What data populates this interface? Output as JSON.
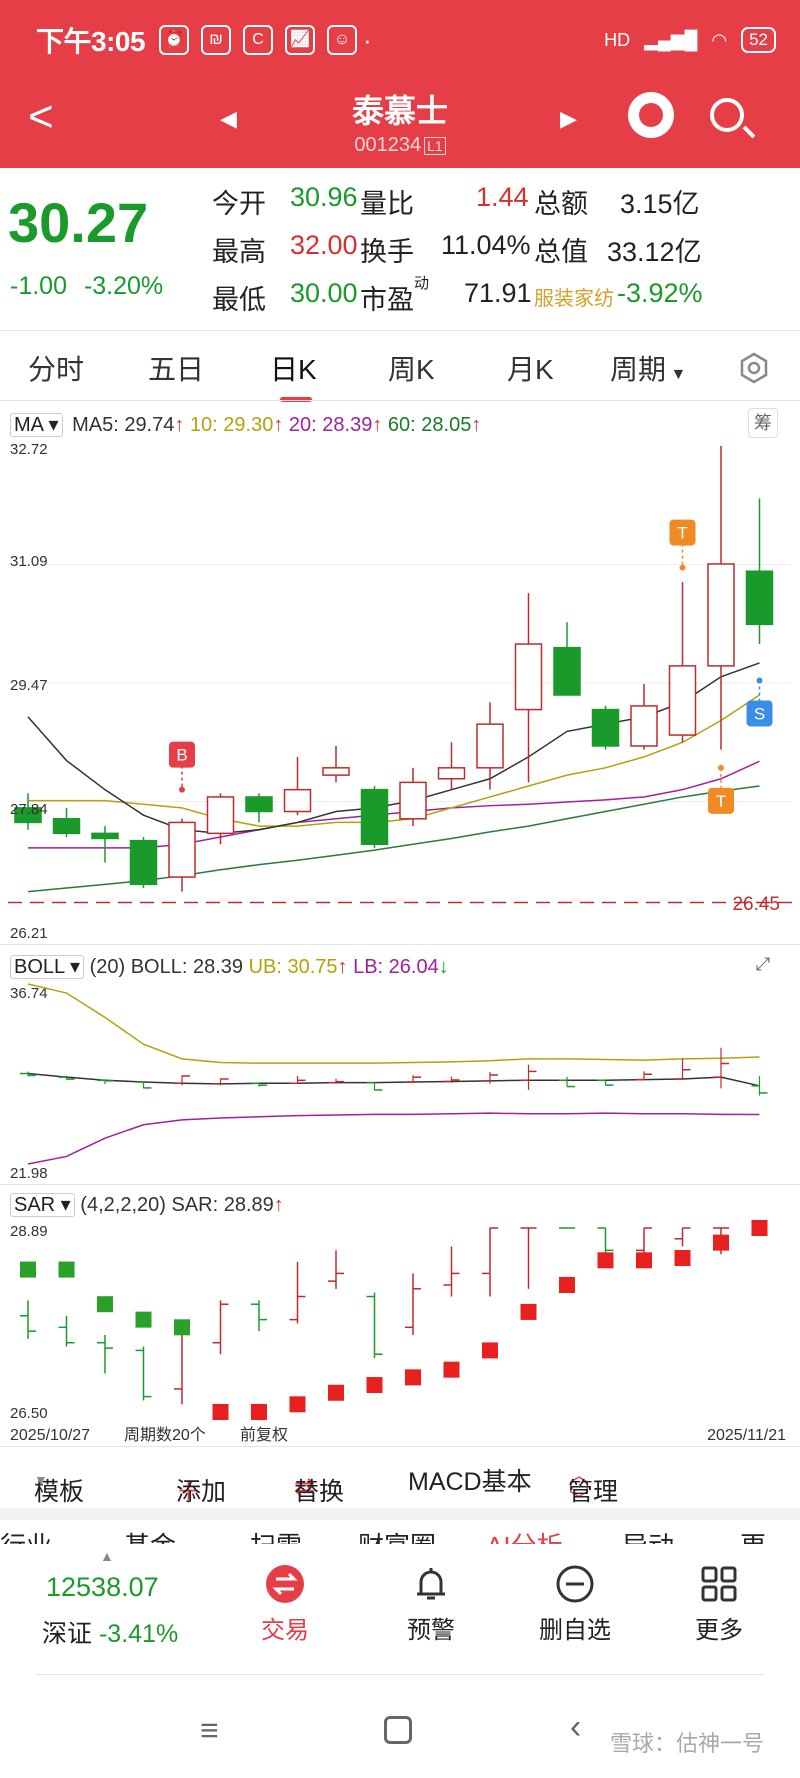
{
  "status_bar": {
    "time": "下午3:05",
    "battery": "52",
    "network": "HD"
  },
  "header": {
    "stock_name": "泰慕士",
    "stock_code": "001234",
    "code_badge": "L1"
  },
  "quote": {
    "price": "30.27",
    "change": "-1.00",
    "change_pct": "-3.20%",
    "open_label": "今开",
    "open": "30.96",
    "high_label": "最高",
    "high": "32.00",
    "low_label": "最低",
    "low": "30.00",
    "vol_ratio_label": "量比",
    "vol_ratio": "1.44",
    "turnover_label": "换手",
    "turnover": "11.04%",
    "pe_label": "市盈",
    "pe_sup": "动",
    "pe": "71.91",
    "amount_label": "总额",
    "amount": "3.15亿",
    "mcap_label": "总值",
    "mcap": "33.12亿",
    "industry": "服装家纺",
    "industry_pct": "-3.92%"
  },
  "tabs": [
    "分时",
    "五日",
    "日K",
    "周K",
    "月K",
    "周期"
  ],
  "active_tab": "日K",
  "ma_panel": {
    "selector": "MA",
    "ma5": "MA5: 29.74",
    "ma10": "10: 29.30",
    "ma20": "20: 28.39",
    "ma60": "60: 28.05",
    "tag": "筹",
    "y_labels": [
      "32.72",
      "31.09",
      "29.47",
      "27.84",
      "26.21"
    ],
    "low_marker": "26.45"
  },
  "boll_panel": {
    "selector": "BOLL",
    "params": "(20) BOLL: 28.39",
    "ub": "UB: 30.75",
    "lb": "LB: 26.04",
    "y_top": "36.74",
    "y_bottom": "21.98"
  },
  "sar_panel": {
    "selector": "SAR",
    "params": "(4,2,2,20) SAR: 28.89",
    "y_top": "28.89",
    "y_bottom": "26.50",
    "date_start": "2025/10/27",
    "period_count": "周期数20个",
    "adjust": "前复权",
    "date_end": "2025/11/21"
  },
  "toolbar": {
    "template": "模板",
    "add": "添加",
    "replace": "替换",
    "indicator": "MACD基本",
    "manage": "管理"
  },
  "sub_tabs_partial": [
    "行业",
    "基金",
    "扫雷",
    "财富圈",
    "AI分析",
    "异动",
    "更"
  ],
  "bottom_nav": {
    "index_value": "12538.07",
    "index_name": "深证",
    "index_change": "-3.41%",
    "trade": "交易",
    "alert": "预警",
    "remove_watch": "删自选",
    "more": "更多"
  },
  "watermark": "雪球：估神一号",
  "chart_data": {
    "type": "candlestick",
    "dates_range": [
      "2025/10/27",
      "2025/11/21"
    ],
    "y_range": [
      26.21,
      32.72
    ],
    "candles": [
      {
        "o": 27.75,
        "c": 27.55,
        "h": 27.95,
        "l": 27.45
      },
      {
        "o": 27.6,
        "c": 27.4,
        "h": 27.75,
        "l": 27.35
      },
      {
        "o": 27.4,
        "c": 27.33,
        "h": 27.5,
        "l": 27.0
      },
      {
        "o": 27.3,
        "c": 26.7,
        "h": 27.35,
        "l": 26.65
      },
      {
        "o": 26.8,
        "c": 27.55,
        "h": 27.6,
        "l": 26.6
      },
      {
        "o": 27.4,
        "c": 27.9,
        "h": 27.95,
        "l": 27.25
      },
      {
        "o": 27.9,
        "c": 27.7,
        "h": 27.95,
        "l": 27.55
      },
      {
        "o": 27.7,
        "c": 28.0,
        "h": 28.45,
        "l": 27.65
      },
      {
        "o": 28.2,
        "c": 28.3,
        "h": 28.6,
        "l": 28.1
      },
      {
        "o": 28.0,
        "c": 27.25,
        "h": 28.05,
        "l": 27.2
      },
      {
        "o": 27.6,
        "c": 28.1,
        "h": 28.3,
        "l": 27.5
      },
      {
        "o": 28.15,
        "c": 28.3,
        "h": 28.65,
        "l": 28.0
      },
      {
        "o": 28.3,
        "c": 28.9,
        "h": 29.2,
        "l": 28.0
      },
      {
        "o": 29.1,
        "c": 30.0,
        "h": 30.7,
        "l": 28.1
      },
      {
        "o": 29.95,
        "c": 29.3,
        "h": 30.3,
        "l": 29.3
      },
      {
        "o": 29.1,
        "c": 28.6,
        "h": 29.15,
        "l": 28.55
      },
      {
        "o": 28.6,
        "c": 29.15,
        "h": 29.45,
        "l": 28.55
      },
      {
        "o": 28.75,
        "c": 29.7,
        "h": 30.85,
        "l": 28.65
      },
      {
        "o": 29.7,
        "c": 31.1,
        "h": 32.72,
        "l": 28.55
      },
      {
        "o": 31.0,
        "c": 30.27,
        "h": 32.0,
        "l": 30.0
      }
    ],
    "signals": [
      {
        "index": 4,
        "label": "B",
        "pos": "above",
        "value": 28.0
      },
      {
        "index": 17,
        "label": "T",
        "pos": "above",
        "value": 31.05
      },
      {
        "index": 18,
        "label": "T",
        "pos": "below",
        "value": 28.3
      },
      {
        "index": 19,
        "label": "S",
        "pos": "below",
        "value": 29.5
      }
    ],
    "ma5": [
      29.0,
      28.4,
      28.0,
      27.65,
      27.45,
      27.4,
      27.45,
      27.55,
      27.7,
      27.75,
      27.85,
      28.0,
      28.15,
      28.45,
      28.8,
      28.9,
      29.0,
      29.2,
      29.55,
      29.74
    ],
    "ma10": [
      27.85,
      27.85,
      27.85,
      27.8,
      27.75,
      27.6,
      27.5,
      27.5,
      27.55,
      27.55,
      27.6,
      27.75,
      27.9,
      28.05,
      28.2,
      28.3,
      28.45,
      28.65,
      28.95,
      29.3
    ],
    "ma20": [
      27.2,
      27.2,
      27.2,
      27.2,
      27.25,
      27.35,
      27.45,
      27.55,
      27.6,
      27.65,
      27.7,
      27.75,
      27.78,
      27.8,
      27.83,
      27.86,
      27.9,
      28.0,
      28.15,
      28.39
    ],
    "ma60": [
      26.6,
      26.65,
      26.7,
      26.75,
      26.82,
      26.9,
      26.97,
      27.03,
      27.1,
      27.17,
      27.25,
      27.33,
      27.42,
      27.5,
      27.6,
      27.7,
      27.8,
      27.9,
      27.98,
      28.05
    ],
    "low_marker": 26.45,
    "boll": {
      "y_range": [
        21.98,
        36.74
      ],
      "ub": [
        36.74,
        36.0,
        34.0,
        31.8,
        30.6,
        30.3,
        30.25,
        30.25,
        30.25,
        30.25,
        30.3,
        30.35,
        30.45,
        30.6,
        30.6,
        30.55,
        30.5,
        30.6,
        30.65,
        30.75
      ],
      "mid": [
        29.4,
        29.1,
        28.85,
        28.7,
        28.6,
        28.55,
        28.6,
        28.6,
        28.65,
        28.65,
        28.7,
        28.75,
        28.8,
        28.85,
        28.85,
        28.85,
        28.9,
        28.95,
        29.1,
        28.39
      ],
      "lb": [
        21.98,
        22.6,
        24.1,
        25.2,
        25.6,
        25.75,
        25.85,
        25.95,
        26.0,
        26.05,
        26.05,
        26.1,
        26.15,
        26.1,
        26.1,
        26.15,
        26.1,
        26.1,
        26.05,
        26.04
      ]
    },
    "sar": {
      "y_range": [
        26.5,
        28.89
      ],
      "dots": [
        28.35,
        28.35,
        27.9,
        27.7,
        27.6,
        26.5,
        26.5,
        26.6,
        26.75,
        26.85,
        26.95,
        27.05,
        27.3,
        27.8,
        28.15,
        28.47,
        28.47,
        28.5,
        28.7,
        28.89
      ],
      "dot_color": [
        "g",
        "g",
        "g",
        "g",
        "g",
        "r",
        "r",
        "r",
        "r",
        "r",
        "r",
        "r",
        "r",
        "r",
        "r",
        "r",
        "r",
        "r",
        "r",
        "r"
      ]
    }
  }
}
